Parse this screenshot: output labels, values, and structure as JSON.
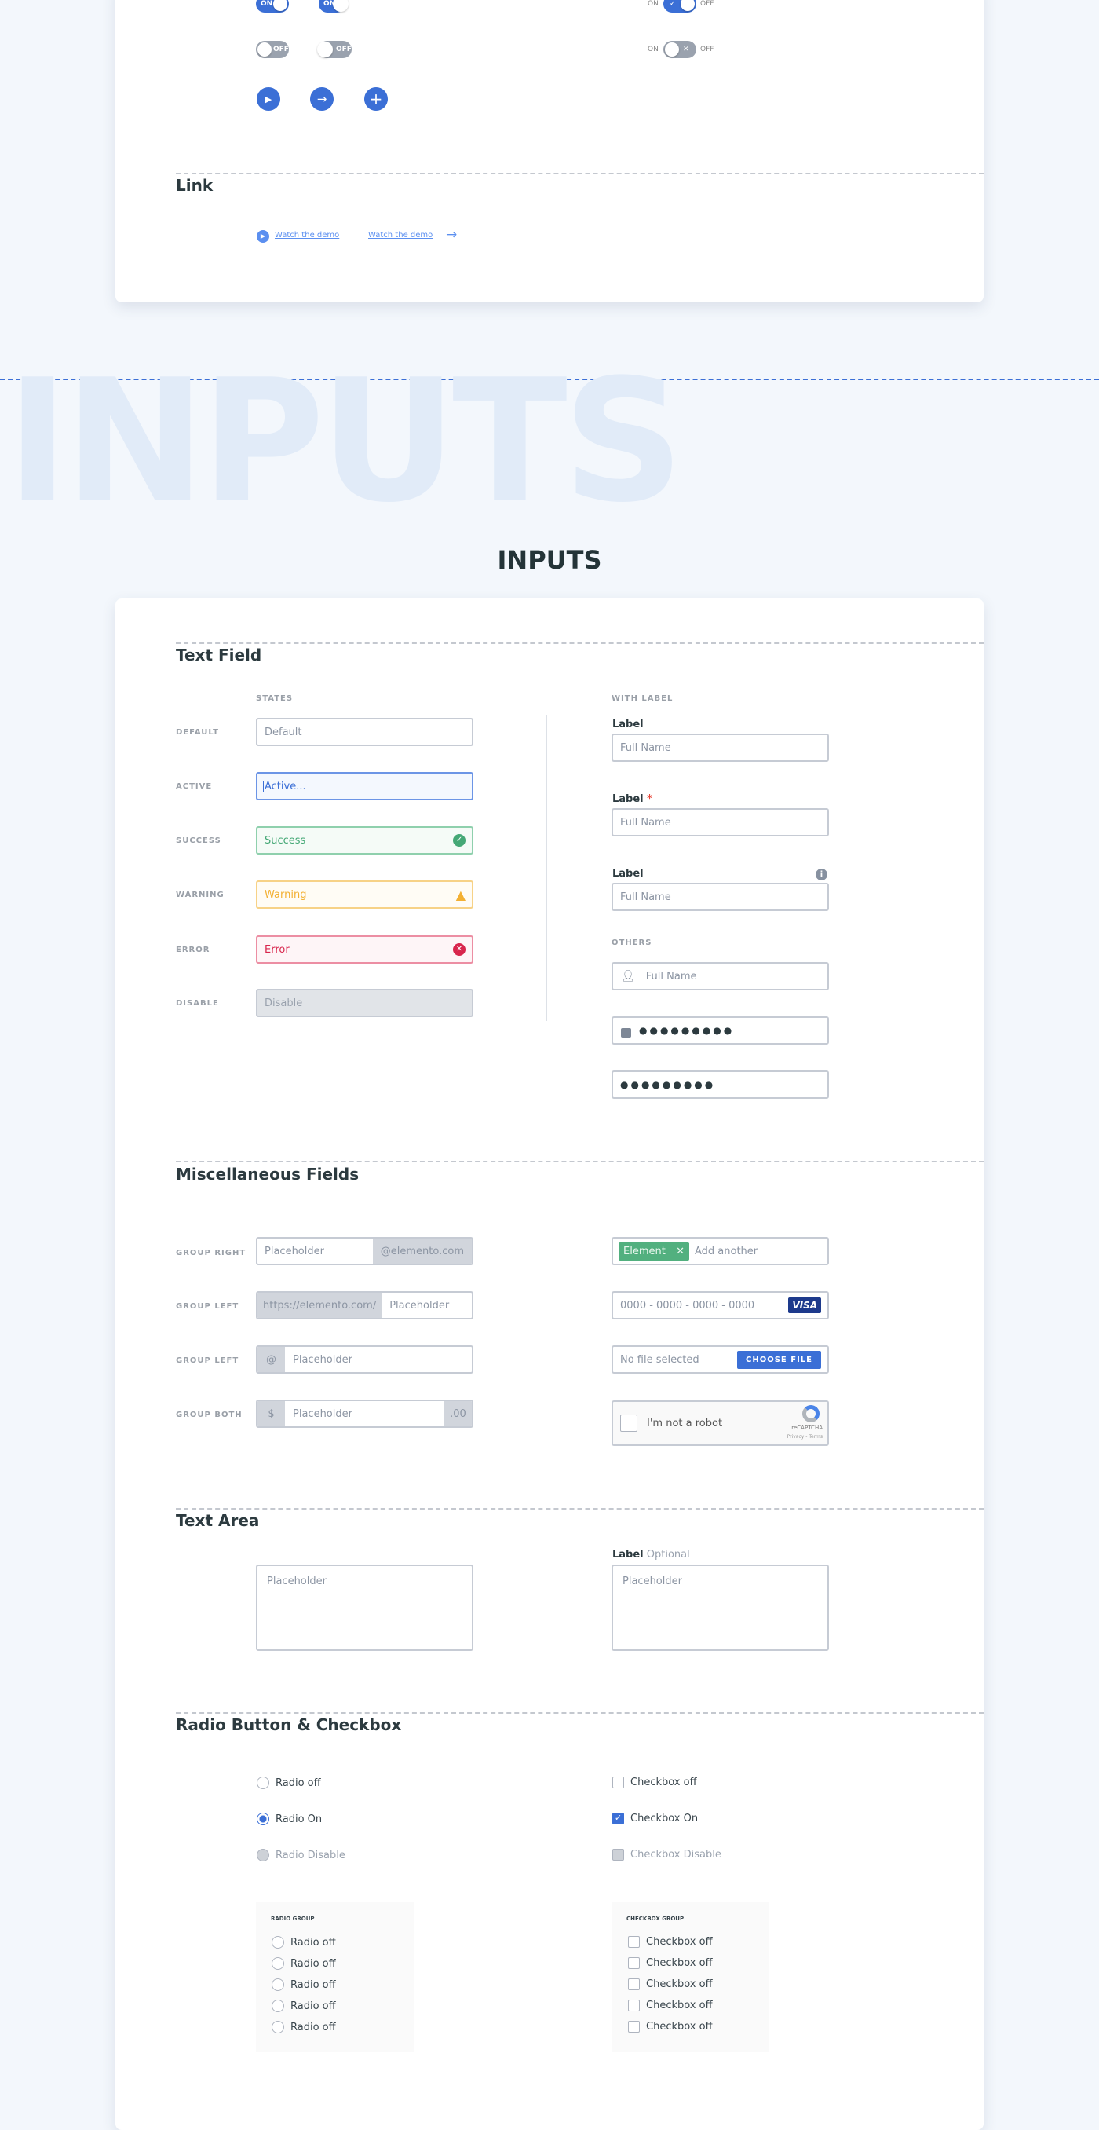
{
  "colors": {
    "accent": "#3b6fd6",
    "success": "#45a876",
    "warning": "#f3b033",
    "error": "#d8264d",
    "bg": "#f3f7fc"
  },
  "toggles": {
    "on": "ON",
    "off": "OFF"
  },
  "link_section": {
    "title": "Link",
    "link1": "Watch the demo",
    "link2": "Watch the demo"
  },
  "inputs_section": {
    "watermark": "INPUTS",
    "title": "INPUTS"
  },
  "text_field": {
    "title": "Text Field",
    "states_caption": "STATES",
    "with_label_caption": "WITH LABEL",
    "others_caption": "OTHERS",
    "states": [
      {
        "label": "DEFAULT",
        "value": "Default"
      },
      {
        "label": "ACTIVE",
        "value": "Active..."
      },
      {
        "label": "SUCCESS",
        "value": "Success"
      },
      {
        "label": "WARNING",
        "value": "Warning"
      },
      {
        "label": "ERROR",
        "value": "Error"
      },
      {
        "label": "DISABLE",
        "value": "Disable"
      }
    ],
    "labeled": [
      {
        "label": "Label",
        "placeholder": "Full Name"
      },
      {
        "label": "Label",
        "required": "*",
        "placeholder": "Full Name"
      },
      {
        "label": "Label",
        "placeholder": "Full Name"
      }
    ],
    "others": {
      "user_placeholder": "Full Name",
      "password1": "●●●●●●●●●",
      "password2": "●●●●●●●●●"
    }
  },
  "misc": {
    "title": "Miscellaneous Fields",
    "rows": [
      {
        "label": "GROUP RIGHT",
        "placeholder": "Placeholder",
        "addon_right": "@elemento.com"
      },
      {
        "label": "GROUP LEFT",
        "placeholder": "Placeholder",
        "addon_left": "https://elemento.com/"
      },
      {
        "label": "GROUP LEFT",
        "placeholder": "Placeholder",
        "addon_left": "@"
      },
      {
        "label": "GROUP BOTH",
        "placeholder": "Placeholder",
        "addon_left": "$",
        "addon_right": ".00"
      }
    ],
    "tag": "Element",
    "tag_placeholder": "Add another",
    "card_placeholder": "0000 - 0000 - 0000 - 0000",
    "card_brand": "VISA",
    "file_status": "No file selected",
    "file_button": "CHOOSE FILE",
    "captcha": {
      "text": "I'm not a robot",
      "brand": "reCAPTCHA",
      "links": "Privacy - Terms"
    }
  },
  "text_area": {
    "title": "Text Area",
    "placeholder1": "Placeholder",
    "label": "Label",
    "optional": "Optional",
    "placeholder2": "Placeholder"
  },
  "radio_checkbox": {
    "title": "Radio Button & Checkbox",
    "radios": [
      "Radio off",
      "Radio On",
      "Radio Disable"
    ],
    "checkboxes": [
      "Checkbox off",
      "Checkbox On",
      "Checkbox Disable"
    ],
    "radio_group_title": "RADIO GROUP",
    "radio_group": [
      "Radio off",
      "Radio off",
      "Radio off",
      "Radio off",
      "Radio off"
    ],
    "checkbox_group_title": "CHECKBOX GROUP",
    "checkbox_group": [
      "Checkbox off",
      "Checkbox off",
      "Checkbox off",
      "Checkbox off",
      "Checkbox off"
    ]
  }
}
